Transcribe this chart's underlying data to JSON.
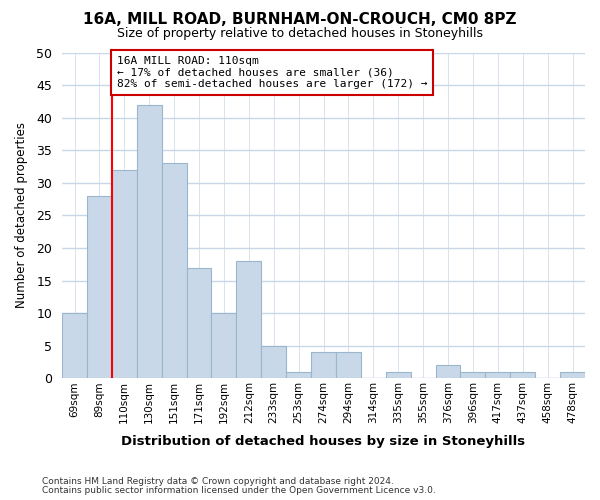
{
  "title1": "16A, MILL ROAD, BURNHAM-ON-CROUCH, CM0 8PZ",
  "title2": "Size of property relative to detached houses in Stoneyhills",
  "xlabel": "Distribution of detached houses by size in Stoneyhills",
  "ylabel": "Number of detached properties",
  "categories": [
    "69sqm",
    "89sqm",
    "110sqm",
    "130sqm",
    "151sqm",
    "171sqm",
    "192sqm",
    "212sqm",
    "233sqm",
    "253sqm",
    "274sqm",
    "294sqm",
    "314sqm",
    "335sqm",
    "355sqm",
    "376sqm",
    "396sqm",
    "417sqm",
    "437sqm",
    "458sqm",
    "478sqm"
  ],
  "values": [
    10,
    28,
    32,
    42,
    33,
    17,
    10,
    18,
    5,
    1,
    4,
    4,
    0,
    1,
    0,
    2,
    1,
    1,
    1,
    0,
    1
  ],
  "bar_color": "#c8d8e8",
  "bar_edge_color": "#9ab5cc",
  "red_line_index": 2,
  "ylim": [
    0,
    50
  ],
  "yticks": [
    0,
    5,
    10,
    15,
    20,
    25,
    30,
    35,
    40,
    45,
    50
  ],
  "annotation_text": "16A MILL ROAD: 110sqm\n← 17% of detached houses are smaller (36)\n82% of semi-detached houses are larger (172) →",
  "annotation_box_color": "#ffffff",
  "annotation_box_edge": "#cc0000",
  "footer1": "Contains HM Land Registry data © Crown copyright and database right 2024.",
  "footer2": "Contains public sector information licensed under the Open Government Licence v3.0.",
  "background_color": "#ffffff",
  "plot_background": "#ffffff",
  "grid_color": "#c8d8e8"
}
